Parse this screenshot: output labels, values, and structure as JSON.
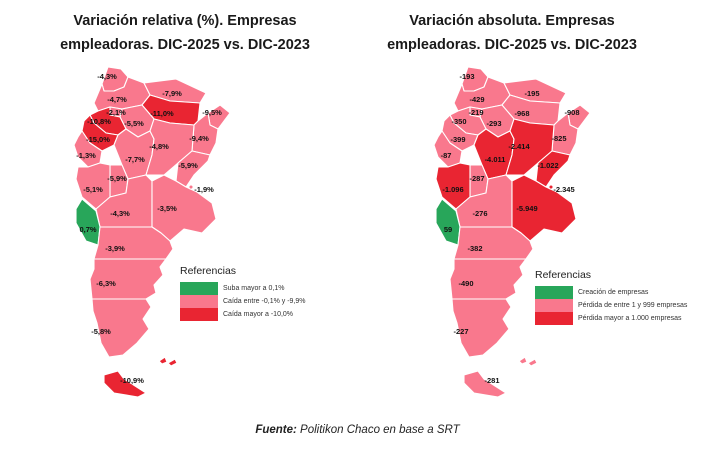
{
  "colors": {
    "green": "#28A65A",
    "pink": "#F9788D",
    "red": "#E92532"
  },
  "maps": [
    {
      "title_line1": "Variación relativa (%). Empresas",
      "title_line2": "empleadoras. DIC-2025 vs. DIC-2023",
      "value_key": "rel",
      "cat_key": "rel_cat",
      "legend": {
        "title": "Referencias",
        "items": [
          {
            "label": "Suba mayor a 0,1%",
            "color": "green"
          },
          {
            "label": "Caída entre -0,1% y -9,9%",
            "color": "pink"
          },
          {
            "label": "Caída mayor a -10,0%",
            "color": "red"
          }
        ]
      }
    },
    {
      "title_line1": "Variación absoluta. Empresas",
      "title_line2": "empleadoras. DIC-2025 vs. DIC-2023",
      "value_key": "abs",
      "cat_key": "abs_cat",
      "legend": {
        "title": "Referencias",
        "items": [
          {
            "label": "Creación de empresas",
            "color": "green"
          },
          {
            "label": "Pérdida de entre 1 y 999 empresas",
            "color": "pink"
          },
          {
            "label": "Pérdida mayor a 1.000 empresas",
            "color": "red"
          }
        ]
      }
    }
  ],
  "provinces": [
    {
      "id": "jujuy",
      "name": "Jujuy",
      "rel": "-4,3%",
      "rel_cat": "pink",
      "abs": "-193",
      "abs_cat": "pink"
    },
    {
      "id": "salta",
      "name": "Salta",
      "rel": "-4,7%",
      "rel_cat": "pink",
      "abs": "-429",
      "abs_cat": "pink"
    },
    {
      "id": "formosa",
      "name": "Formosa",
      "rel": "-7,9%",
      "rel_cat": "pink",
      "abs": "-195",
      "abs_cat": "pink"
    },
    {
      "id": "chaco",
      "name": "Chaco",
      "rel": "-11,0%",
      "rel_cat": "red",
      "abs": "-968",
      "abs_cat": "pink"
    },
    {
      "id": "misiones",
      "name": "Misiones",
      "rel": "-9,5%",
      "rel_cat": "pink",
      "abs": "-908",
      "abs_cat": "pink"
    },
    {
      "id": "corrientes",
      "name": "Corrientes",
      "rel": "-9,4%",
      "rel_cat": "pink",
      "abs": "-825",
      "abs_cat": "pink"
    },
    {
      "id": "tucuman",
      "name": "Tucumán",
      "rel": "-2,1%",
      "rel_cat": "pink",
      "abs": "-219",
      "abs_cat": "pink"
    },
    {
      "id": "santiago",
      "name": "Santiago del Estero",
      "rel": "-5,5%",
      "rel_cat": "pink",
      "abs": "-293",
      "abs_cat": "pink"
    },
    {
      "id": "catamarca",
      "name": "Catamarca",
      "rel": "-10,8%",
      "rel_cat": "red",
      "abs": "-350",
      "abs_cat": "pink"
    },
    {
      "id": "larioja",
      "name": "La Rioja",
      "rel": "-15,0%",
      "rel_cat": "red",
      "abs": "-399",
      "abs_cat": "pink"
    },
    {
      "id": "sanjuan",
      "name": "San Juan",
      "rel": "-1,3%",
      "rel_cat": "pink",
      "abs": "-87",
      "abs_cat": "pink"
    },
    {
      "id": "cordoba",
      "name": "Córdoba",
      "rel": "-7,7%",
      "rel_cat": "pink",
      "abs": "-4.011",
      "abs_cat": "red"
    },
    {
      "id": "santafe",
      "name": "Santa Fe",
      "rel": "-4,8%",
      "rel_cat": "pink",
      "abs": "-2.414",
      "abs_cat": "red"
    },
    {
      "id": "entrerios",
      "name": "Entre Ríos",
      "rel": "-5,9%",
      "rel_cat": "pink",
      "abs": "-1.022",
      "abs_cat": "red"
    },
    {
      "id": "sanluis",
      "name": "San Luis",
      "rel": "-5,9%",
      "rel_cat": "pink",
      "abs": "-287",
      "abs_cat": "pink"
    },
    {
      "id": "mendoza",
      "name": "Mendoza",
      "rel": "-5,1%",
      "rel_cat": "pink",
      "abs": "-1.096",
      "abs_cat": "red"
    },
    {
      "id": "lapampa",
      "name": "La Pampa",
      "rel": "-4,3%",
      "rel_cat": "pink",
      "abs": "-276",
      "abs_cat": "pink"
    },
    {
      "id": "buenosaires",
      "name": "Buenos Aires",
      "rel": "-3,5%",
      "rel_cat": "pink",
      "abs": "-5.949",
      "abs_cat": "red"
    },
    {
      "id": "caba",
      "name": "CABA",
      "rel": "-1,9%",
      "rel_cat": "pink",
      "abs": "-2.345",
      "abs_cat": "red"
    },
    {
      "id": "neuquen",
      "name": "Neuquén",
      "rel": "0,7%",
      "rel_cat": "green",
      "abs": "59",
      "abs_cat": "green"
    },
    {
      "id": "rionegro",
      "name": "Río Negro",
      "rel": "-3,9%",
      "rel_cat": "pink",
      "abs": "-382",
      "abs_cat": "pink"
    },
    {
      "id": "chubut",
      "name": "Chubut",
      "rel": "-6,3%",
      "rel_cat": "pink",
      "abs": "-490",
      "abs_cat": "pink"
    },
    {
      "id": "santacruz",
      "name": "Santa Cruz",
      "rel": "-5,8%",
      "rel_cat": "pink",
      "abs": "-227",
      "abs_cat": "pink"
    },
    {
      "id": "tdf",
      "name": "Tierra del Fuego",
      "rel": "-10,9%",
      "rel_cat": "red",
      "abs": "-281",
      "abs_cat": "pink"
    },
    {
      "id": "malvinas",
      "name": "Islas Malvinas",
      "rel": "",
      "rel_cat": "red",
      "abs": "",
      "abs_cat": "pink"
    }
  ],
  "footer": {
    "prefix": "Fuente:",
    "text": " Politikon Chaco en base a SRT"
  }
}
